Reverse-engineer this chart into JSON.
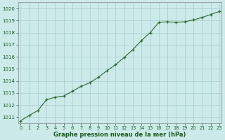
{
  "x": [
    0,
    1,
    2,
    3,
    4,
    5,
    6,
    7,
    8,
    9,
    10,
    11,
    12,
    13,
    14,
    15,
    16,
    17,
    18,
    19,
    20,
    21,
    22,
    23
  ],
  "y": [
    1010.7,
    1011.15,
    1011.55,
    1012.45,
    1012.65,
    1012.75,
    1013.15,
    1013.55,
    1013.85,
    1014.3,
    1014.85,
    1015.35,
    1015.95,
    1016.6,
    1017.35,
    1018.0,
    1018.85,
    1018.9,
    1018.85,
    1018.9,
    1019.05,
    1019.25,
    1019.5,
    1019.75
  ],
  "line_color": "#2d6a2d",
  "marker": "+",
  "marker_color": "#2d6a2d",
  "bg_color": "#cceaea",
  "grid_color": "#a8cccc",
  "xlabel": "Graphe pression niveau de la mer (hPa)",
  "xlabel_color": "#1a5c1a",
  "tick_color": "#1a5c1a",
  "ylim": [
    1010.5,
    1020.5
  ],
  "xlim": [
    -0.3,
    23.3
  ],
  "yticks": [
    1011,
    1012,
    1013,
    1014,
    1015,
    1016,
    1017,
    1018,
    1019,
    1020
  ],
  "xticks": [
    0,
    1,
    2,
    3,
    4,
    5,
    6,
    7,
    8,
    9,
    10,
    11,
    12,
    13,
    14,
    15,
    16,
    17,
    18,
    19,
    20,
    21,
    22,
    23
  ]
}
